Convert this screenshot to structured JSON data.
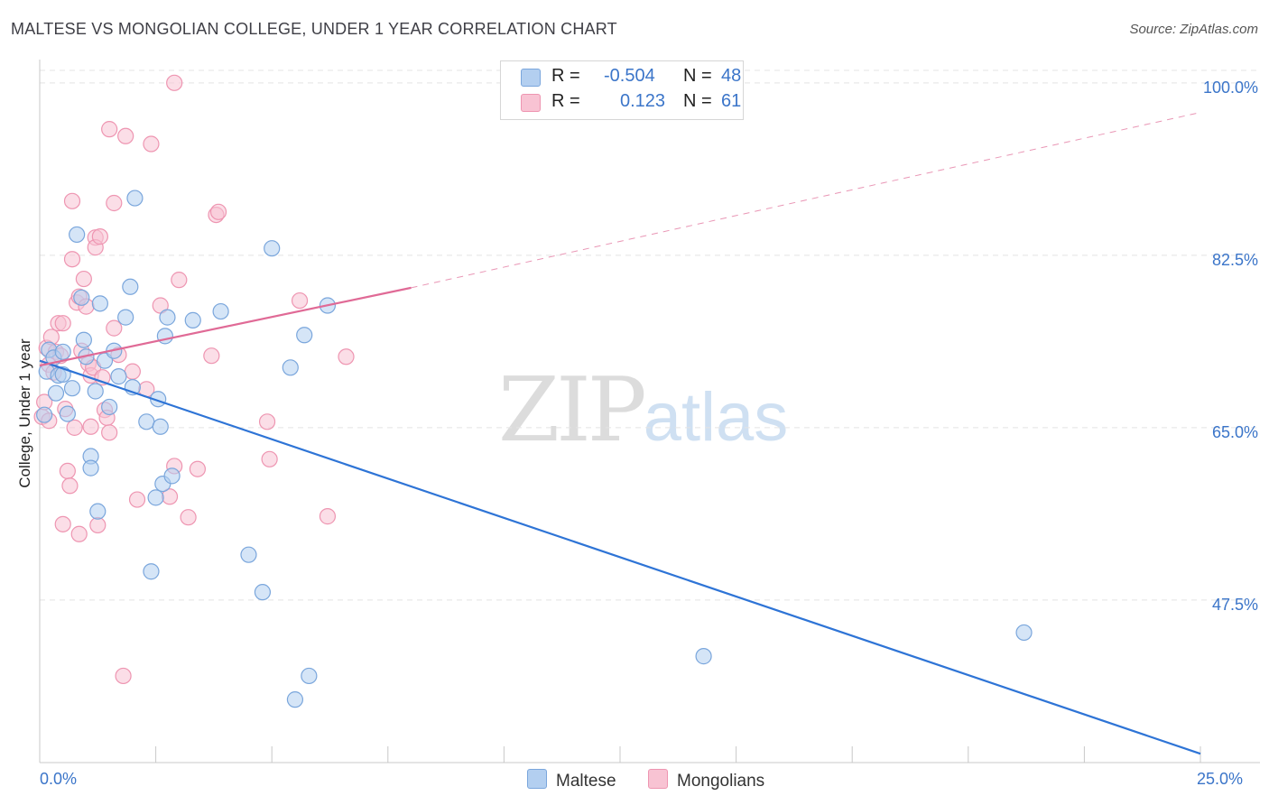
{
  "title": "MALTESE VS MONGOLIAN COLLEGE, UNDER 1 YEAR CORRELATION CHART",
  "source": "Source: ZipAtlas.com",
  "watermark": {
    "zip": "ZIP",
    "atlas": "atlas"
  },
  "legend": {
    "rows": [
      {
        "r_label": "R =",
        "r_value": "-0.504",
        "n_label": "N =",
        "n_value": "48"
      },
      {
        "r_label": "R =",
        "r_value": "0.123",
        "n_label": "N =",
        "n_value": "61"
      }
    ]
  },
  "bottom_legend": [
    "Maltese",
    "Mongolians"
  ],
  "colors": {
    "maltese_fill": "#b3cff0",
    "maltese_stroke": "#7aa6dc",
    "maltese_line": "#2e74d6",
    "mongolian_fill": "#f8c3d3",
    "mongolian_stroke": "#ee95b1",
    "mongolian_line": "#e06a96",
    "grid": "#e4e4e4",
    "axis_text": "#3b75c9"
  },
  "chart_data": {
    "type": "scatter",
    "title": "MALTESE VS MONGOLIAN COLLEGE, UNDER 1 YEAR CORRELATION CHART",
    "xlabel": "",
    "ylabel": "College, Under 1 year",
    "xlim": [
      0,
      25
    ],
    "ylim": [
      31,
      102
    ],
    "x_tick_labels": [
      "0.0%",
      "25.0%"
    ],
    "y_ticks": [
      47.5,
      65.0,
      82.5,
      100.0
    ],
    "y_tick_labels": [
      "47.5%",
      "65.0%",
      "82.5%",
      "100.0%"
    ],
    "grid": true,
    "series": [
      {
        "name": "Maltese",
        "r": -0.504,
        "n": 48,
        "trend": {
          "x": [
            0,
            25
          ],
          "y": [
            71.8,
            31.9
          ],
          "dashed_ext": null
        },
        "points": [
          [
            0.1,
            66.3
          ],
          [
            0.15,
            70.7
          ],
          [
            0.2,
            72.9
          ],
          [
            0.3,
            72.1
          ],
          [
            0.35,
            68.5
          ],
          [
            0.4,
            70.3
          ],
          [
            0.5,
            72.7
          ],
          [
            0.6,
            66.4
          ],
          [
            0.7,
            69.0
          ],
          [
            0.8,
            84.6
          ],
          [
            0.9,
            78.2
          ],
          [
            0.95,
            73.9
          ],
          [
            1.0,
            72.2
          ],
          [
            1.1,
            62.1
          ],
          [
            1.1,
            60.9
          ],
          [
            1.2,
            68.7
          ],
          [
            1.25,
            56.5
          ],
          [
            1.3,
            77.6
          ],
          [
            1.4,
            71.8
          ],
          [
            1.5,
            67.1
          ],
          [
            1.6,
            72.8
          ],
          [
            1.7,
            70.2
          ],
          [
            1.85,
            76.2
          ],
          [
            1.95,
            79.3
          ],
          [
            2.0,
            69.1
          ],
          [
            2.05,
            88.3
          ],
          [
            2.3,
            65.6
          ],
          [
            2.4,
            50.4
          ],
          [
            2.5,
            57.9
          ],
          [
            2.55,
            67.9
          ],
          [
            2.6,
            65.1
          ],
          [
            2.65,
            59.3
          ],
          [
            2.7,
            74.3
          ],
          [
            2.75,
            76.2
          ],
          [
            2.85,
            60.1
          ],
          [
            3.3,
            75.9
          ],
          [
            3.9,
            76.8
          ],
          [
            4.5,
            52.1
          ],
          [
            4.8,
            48.3
          ],
          [
            5.0,
            83.2
          ],
          [
            5.4,
            71.1
          ],
          [
            5.7,
            74.4
          ],
          [
            5.8,
            39.8
          ],
          [
            5.5,
            37.4
          ],
          [
            6.2,
            77.4
          ],
          [
            14.3,
            41.8
          ],
          [
            21.2,
            44.2
          ],
          [
            0.5,
            70.4
          ]
        ]
      },
      {
        "name": "Mongolians",
        "r": 0.123,
        "n": 61,
        "trend": {
          "x": [
            0,
            8.0
          ],
          "y": [
            71.3,
            79.2
          ],
          "dashed_ext": {
            "x": [
              8.0,
              25
            ],
            "y": [
              79.2,
              97.0
            ]
          }
        },
        "points": [
          [
            0.05,
            66.1
          ],
          [
            0.1,
            67.6
          ],
          [
            0.15,
            73.1
          ],
          [
            0.2,
            71.4
          ],
          [
            0.25,
            74.2
          ],
          [
            0.3,
            70.6
          ],
          [
            0.35,
            72.7
          ],
          [
            0.4,
            75.6
          ],
          [
            0.45,
            72.3
          ],
          [
            0.5,
            75.6
          ],
          [
            0.5,
            55.2
          ],
          [
            0.55,
            66.9
          ],
          [
            0.6,
            60.6
          ],
          [
            0.65,
            59.1
          ],
          [
            0.7,
            88.0
          ],
          [
            0.7,
            82.1
          ],
          [
            0.75,
            65.0
          ],
          [
            0.8,
            77.7
          ],
          [
            0.85,
            78.3
          ],
          [
            0.85,
            54.2
          ],
          [
            0.9,
            72.8
          ],
          [
            0.95,
            80.1
          ],
          [
            1.0,
            77.3
          ],
          [
            1.05,
            71.5
          ],
          [
            1.1,
            65.1
          ],
          [
            1.1,
            70.3
          ],
          [
            1.15,
            71.1
          ],
          [
            1.2,
            84.3
          ],
          [
            1.2,
            83.3
          ],
          [
            1.25,
            55.1
          ],
          [
            1.3,
            84.4
          ],
          [
            1.35,
            70.1
          ],
          [
            1.4,
            66.8
          ],
          [
            1.45,
            66.0
          ],
          [
            1.5,
            64.5
          ],
          [
            1.5,
            95.3
          ],
          [
            1.6,
            75.1
          ],
          [
            1.6,
            87.8
          ],
          [
            1.7,
            72.4
          ],
          [
            1.8,
            39.8
          ],
          [
            1.85,
            94.6
          ],
          [
            2.0,
            70.7
          ],
          [
            2.1,
            57.7
          ],
          [
            2.3,
            68.9
          ],
          [
            2.4,
            93.8
          ],
          [
            2.6,
            77.4
          ],
          [
            2.8,
            58.0
          ],
          [
            2.9,
            100.0
          ],
          [
            2.9,
            61.1
          ],
          [
            3.0,
            80.0
          ],
          [
            3.2,
            55.9
          ],
          [
            3.4,
            60.8
          ],
          [
            3.7,
            72.3
          ],
          [
            3.8,
            86.6
          ],
          [
            3.85,
            86.9
          ],
          [
            4.9,
            65.6
          ],
          [
            4.95,
            61.8
          ],
          [
            5.6,
            77.9
          ],
          [
            6.2,
            56.0
          ],
          [
            6.6,
            72.2
          ],
          [
            0.2,
            65.7
          ]
        ]
      }
    ]
  }
}
